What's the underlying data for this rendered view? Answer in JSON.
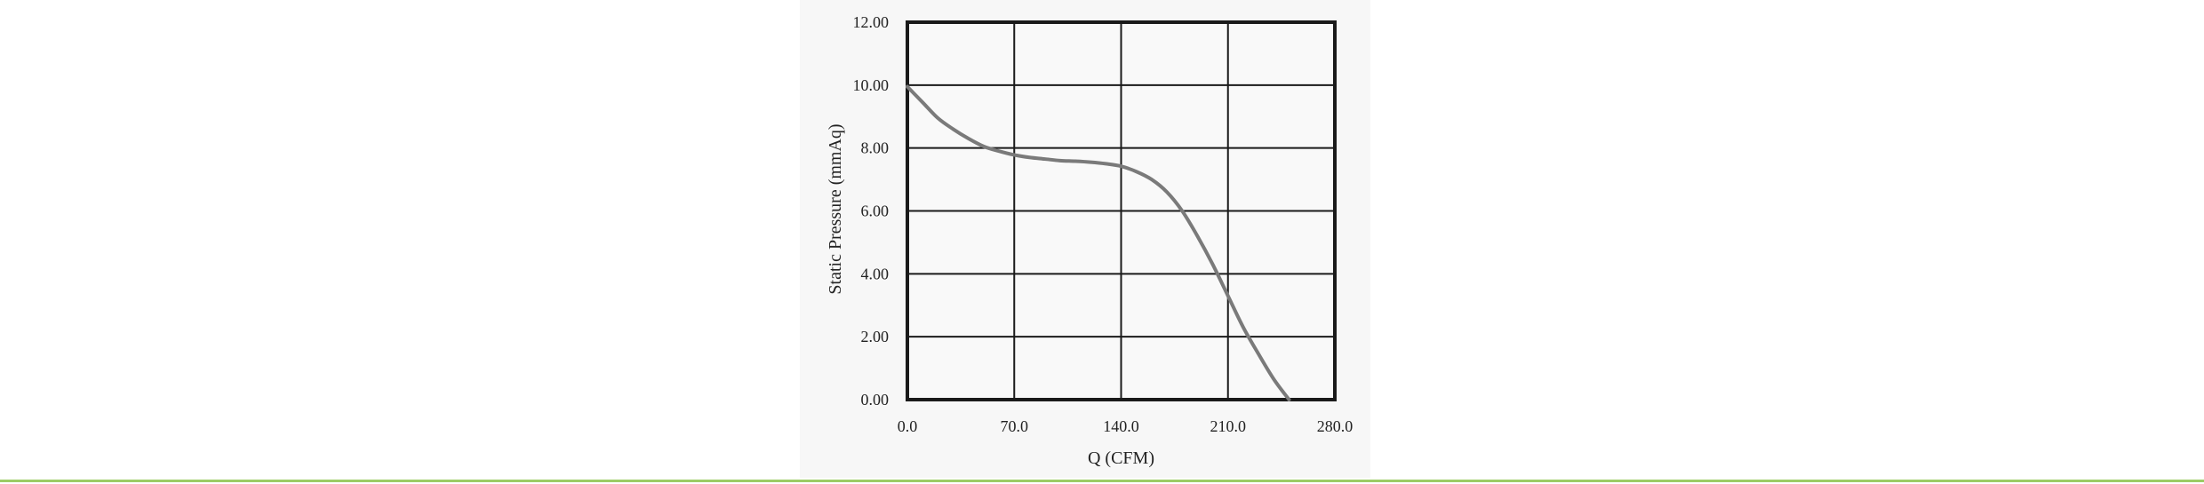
{
  "colors": {
    "background": "#ffffff",
    "panel": "#f7f7f7",
    "grid": "#1a1a1a",
    "curve": "#7a7a7a",
    "bottom_rule": "#9ccc65"
  },
  "chart_data": {
    "type": "line",
    "title": "",
    "xlabel": "Q (CFM)",
    "ylabel": "Static Pressure (mmAq)",
    "xlim": [
      0,
      280
    ],
    "ylim": [
      0,
      12
    ],
    "x_ticks": [
      "0.0",
      "70.0",
      "140.0",
      "210.0",
      "280.0"
    ],
    "y_ticks": [
      "0.00",
      "2.00",
      "4.00",
      "6.00",
      "8.00",
      "10.00",
      "12.00"
    ],
    "grid": true,
    "legend": "none",
    "series": [
      {
        "x": [
          0,
          10,
          20,
          30,
          40,
          50,
          60,
          70,
          80,
          90,
          100,
          110,
          120,
          130,
          140,
          150,
          160,
          170,
          180,
          190,
          200,
          210,
          220,
          230,
          240,
          250
        ],
        "y": [
          9.95,
          9.45,
          8.95,
          8.6,
          8.3,
          8.05,
          7.9,
          7.78,
          7.7,
          7.65,
          7.6,
          7.58,
          7.55,
          7.5,
          7.42,
          7.25,
          7.0,
          6.6,
          6.0,
          5.2,
          4.3,
          3.3,
          2.3,
          1.45,
          0.65,
          0.0
        ]
      }
    ]
  }
}
